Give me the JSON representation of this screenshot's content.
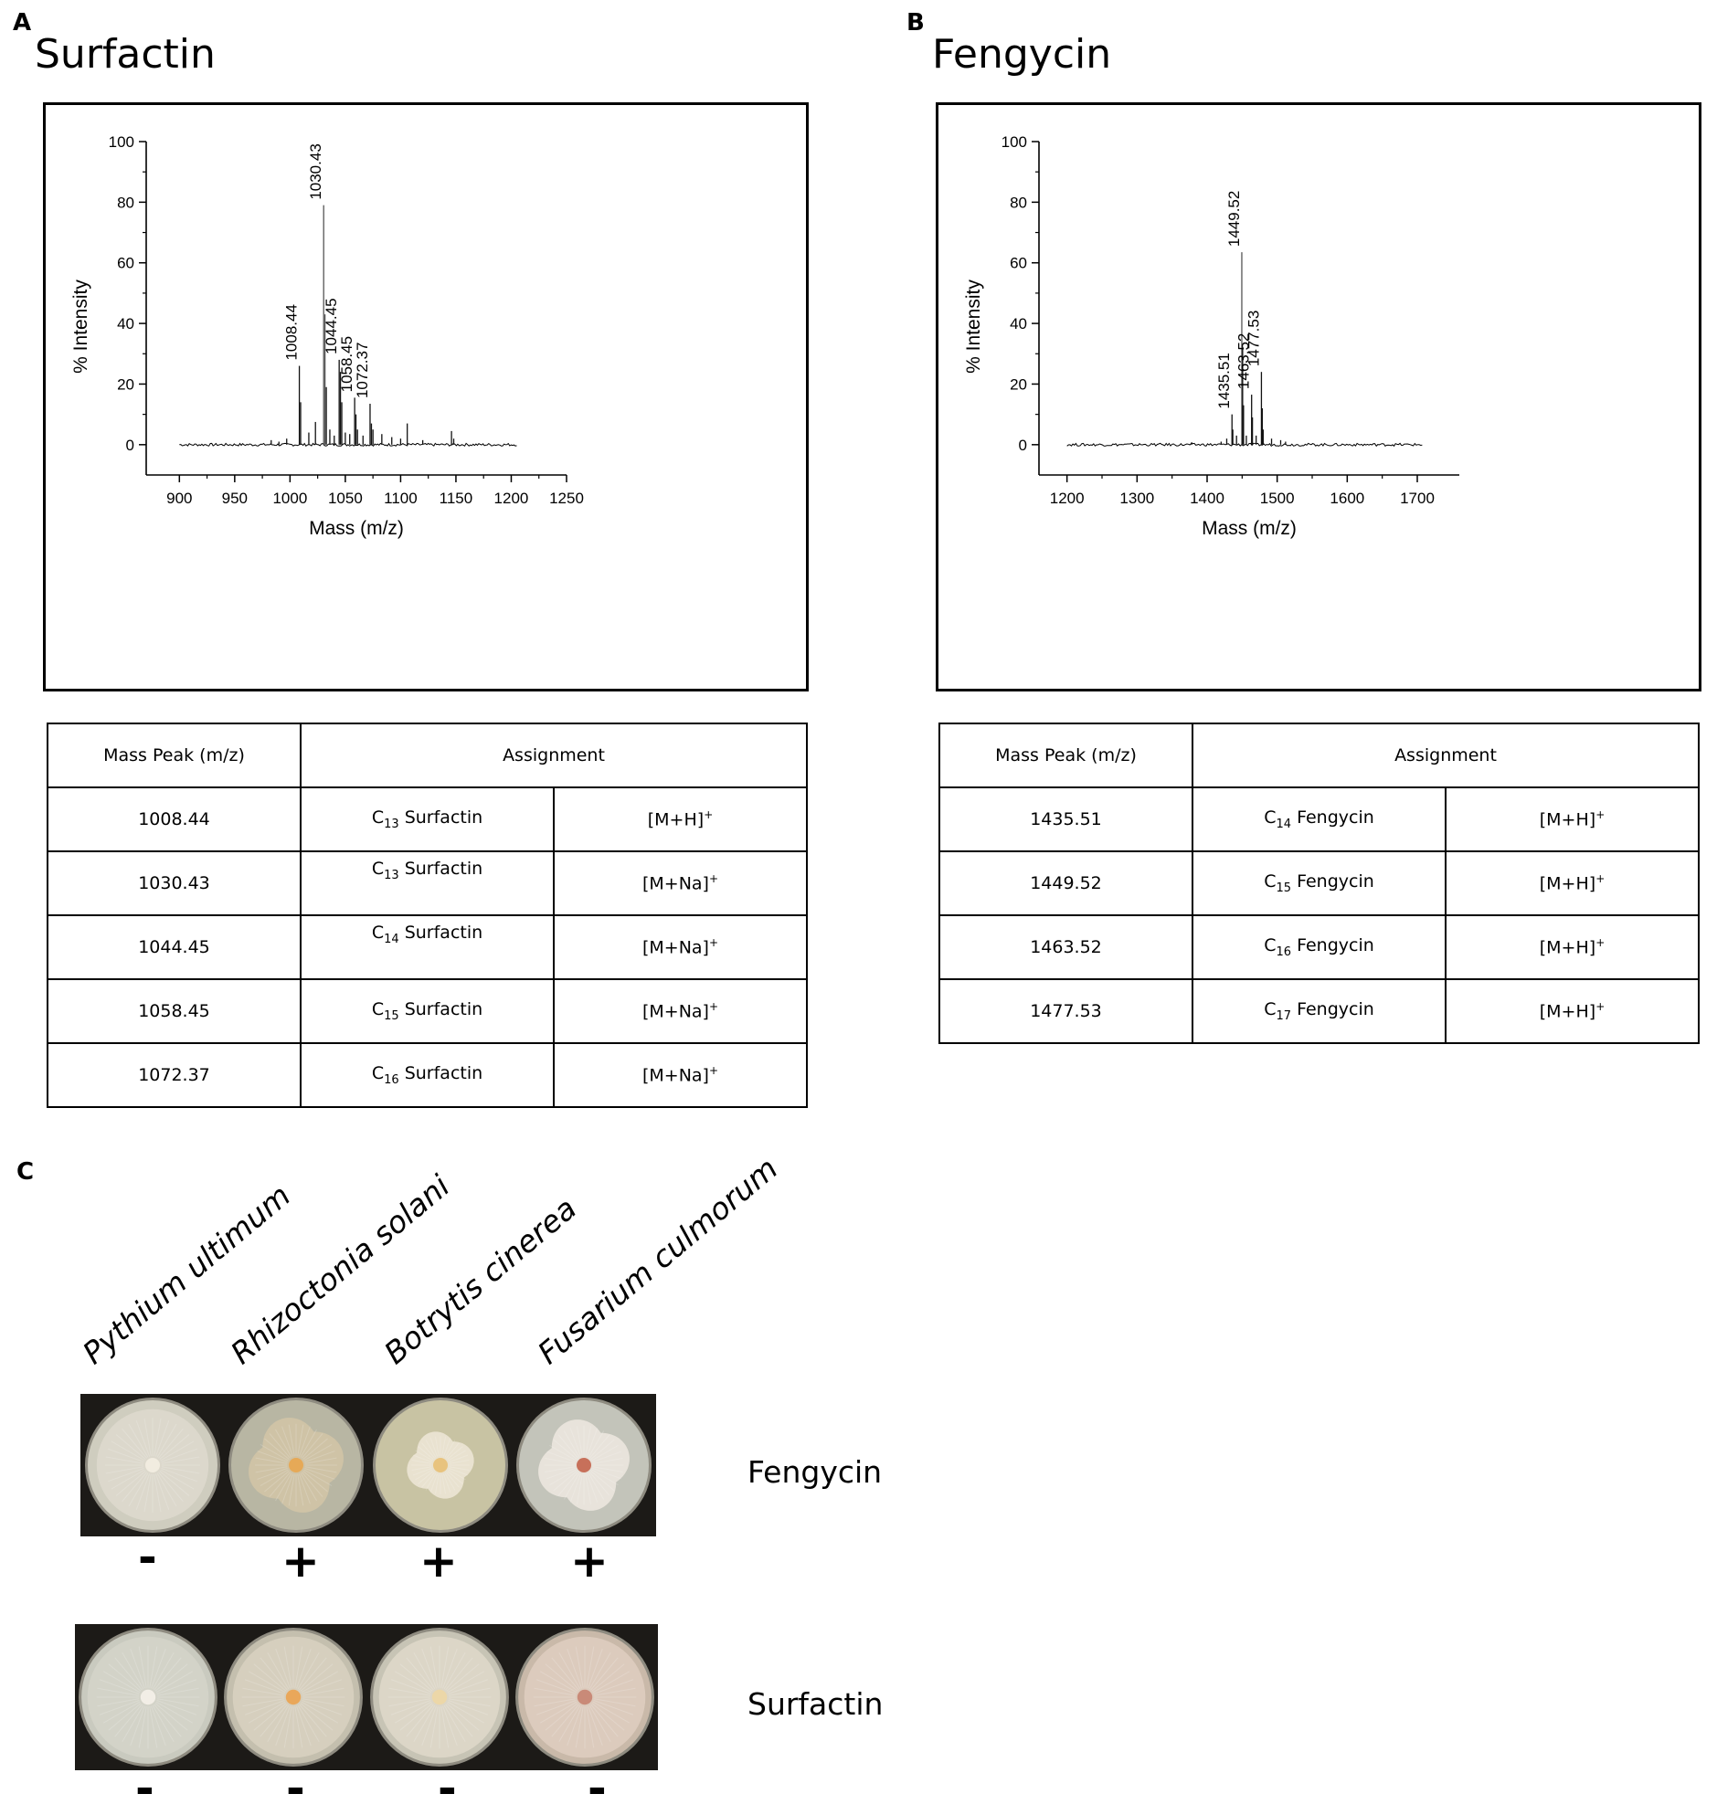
{
  "panel_a": {
    "letter": "A",
    "title": "Surfactin",
    "table": {
      "header_mass": "Mass Peak (m/z)",
      "header_assignment": "Assignment",
      "rows": [
        {
          "mass": "1008.44",
          "carbon": "13",
          "compound": "Surfactin",
          "ion_base": "[M+H]",
          "ion_sup": "+"
        },
        {
          "mass": "1030.43",
          "carbon": "13",
          "compound": "Surfactin",
          "ion_base": "[M+Na]",
          "ion_sup": "+"
        },
        {
          "mass": "1044.45",
          "carbon": "14",
          "compound": "Surfactin",
          "ion_base": "[M+Na]",
          "ion_sup": "+"
        },
        {
          "mass": "1058.45",
          "carbon": "15",
          "compound": "Surfactin",
          "ion_base": "[M+Na]",
          "ion_sup": "+"
        },
        {
          "mass": "1072.37",
          "carbon": "16",
          "compound": "Surfactin",
          "ion_base": "[M+Na]",
          "ion_sup": "+"
        }
      ]
    }
  },
  "panel_b": {
    "letter": "B",
    "title": "Fengycin",
    "table": {
      "header_mass": "Mass Peak (m/z)",
      "header_assignment": "Assignment",
      "rows": [
        {
          "mass": "1435.51",
          "carbon": "14",
          "compound": "Fengycin",
          "ion_base": "[M+H]",
          "ion_sup": "+"
        },
        {
          "mass": "1449.52",
          "carbon": "15",
          "compound": "Fengycin",
          "ion_base": "[M+H]",
          "ion_sup": "+"
        },
        {
          "mass": "1463.52",
          "carbon": "16",
          "compound": "Fengycin",
          "ion_base": "[M+H]",
          "ion_sup": "+"
        },
        {
          "mass": "1477.53",
          "carbon": "17",
          "compound": "Fengycin",
          "ion_base": "[M+H]",
          "ion_sup": "+"
        }
      ]
    }
  },
  "panel_c": {
    "letter": "C",
    "species": [
      "Pythium ultimum",
      "Rhizoctonia solani",
      "Botrytis cinerea",
      "Fusarium culmorum"
    ],
    "rows": [
      {
        "label": "Fengycin",
        "signs": [
          "-",
          "+",
          "+",
          "+"
        ],
        "plates": [
          {
            "agar": "#cfcdbf",
            "mycelium": "#dcd8cc",
            "center": "#f1ece0",
            "spread": 0.9,
            "shape": "round"
          },
          {
            "agar": "#b8b6a3",
            "mycelium": "#cfc3a6",
            "center": "#e6a957",
            "spread": 0.78,
            "shape": "star"
          },
          {
            "agar": "#c8c3a3",
            "mycelium": "#e9e2d0",
            "center": "#e8c37e",
            "spread": 0.55,
            "shape": "star"
          },
          {
            "agar": "#c3c4ba",
            "mycelium": "#e8e3db",
            "center": "#c7705a",
            "spread": 0.75,
            "shape": "star"
          }
        ]
      },
      {
        "label": "Surfactin",
        "signs": [
          "-",
          "-",
          "-",
          "-"
        ],
        "plates": [
          {
            "agar": "#c9cabf",
            "mycelium": "#d3d3c8",
            "center": "#f2eee6",
            "spread": 0.95,
            "shape": "round"
          },
          {
            "agar": "#c4bfae",
            "mycelium": "#d6cfbe",
            "center": "#e9a75a",
            "spread": 0.95,
            "shape": "round"
          },
          {
            "agar": "#c7c4b5",
            "mycelium": "#dcd6c7",
            "center": "#ecd7a8",
            "spread": 0.95,
            "shape": "round"
          },
          {
            "agar": "#c9b9a9",
            "mycelium": "#dccbbd",
            "center": "#c98a78",
            "spread": 0.95,
            "shape": "round"
          }
        ]
      }
    ]
  },
  "chart_data": [
    {
      "type": "line",
      "panel": "A",
      "xlabel": "Mass (m/z)",
      "ylabel": "% Intensity",
      "xlim": [
        870,
        1250
      ],
      "ylim": [
        -10,
        100
      ],
      "xticks": [
        "900",
        "950",
        "1000",
        "1050",
        "1100",
        "1150",
        "1200",
        "1250"
      ],
      "yticks": [
        "0",
        "20",
        "40",
        "60",
        "80",
        "100"
      ],
      "baseline_range": [
        900,
        1205
      ],
      "peaks": [
        {
          "x": 983,
          "y": 1.5
        },
        {
          "x": 990,
          "y": 1
        },
        {
          "x": 997,
          "y": 2
        },
        {
          "x": 1008.44,
          "y": 26,
          "label": "1008.44"
        },
        {
          "x": 1009.6,
          "y": 14
        },
        {
          "x": 1017,
          "y": 4
        },
        {
          "x": 1023,
          "y": 7.5
        },
        {
          "x": 1030.43,
          "y": 79,
          "label": "1030.43"
        },
        {
          "x": 1031.6,
          "y": 43
        },
        {
          "x": 1032.8,
          "y": 19
        },
        {
          "x": 1036,
          "y": 5
        },
        {
          "x": 1040,
          "y": 3
        },
        {
          "x": 1044.45,
          "y": 28,
          "label": "1044.45"
        },
        {
          "x": 1045.6,
          "y": 24
        },
        {
          "x": 1046.8,
          "y": 14
        },
        {
          "x": 1050,
          "y": 4
        },
        {
          "x": 1054,
          "y": 3.5
        },
        {
          "x": 1058.45,
          "y": 15.5,
          "label": "1058.45"
        },
        {
          "x": 1059.6,
          "y": 10
        },
        {
          "x": 1061,
          "y": 5
        },
        {
          "x": 1066,
          "y": 3
        },
        {
          "x": 1072.37,
          "y": 13.5,
          "label": "1072.37"
        },
        {
          "x": 1073.6,
          "y": 7
        },
        {
          "x": 1075,
          "y": 5
        },
        {
          "x": 1083,
          "y": 3.5
        },
        {
          "x": 1092,
          "y": 2.5
        },
        {
          "x": 1100,
          "y": 2
        },
        {
          "x": 1106,
          "y": 7
        },
        {
          "x": 1120,
          "y": 1.5
        },
        {
          "x": 1146,
          "y": 4.5
        },
        {
          "x": 1148,
          "y": 2
        }
      ]
    },
    {
      "type": "line",
      "panel": "B",
      "xlabel": "Mass (m/z)",
      "ylabel": "% Intensity",
      "xlim": [
        1160,
        1760
      ],
      "ylim": [
        -10,
        100
      ],
      "xticks": [
        "1200",
        "1300",
        "1400",
        "1500",
        "1600",
        "1700"
      ],
      "yticks": [
        "0",
        "20",
        "40",
        "60",
        "80",
        "100"
      ],
      "baseline_range": [
        1200,
        1707
      ],
      "peaks": [
        {
          "x": 1378,
          "y": 0.8
        },
        {
          "x": 1420,
          "y": 1
        },
        {
          "x": 1428,
          "y": 2
        },
        {
          "x": 1435.51,
          "y": 10,
          "label": "1435.51"
        },
        {
          "x": 1436.7,
          "y": 5
        },
        {
          "x": 1442,
          "y": 3
        },
        {
          "x": 1449.52,
          "y": 63.5,
          "label": "1449.52"
        },
        {
          "x": 1450.7,
          "y": 32
        },
        {
          "x": 1452,
          "y": 13
        },
        {
          "x": 1456,
          "y": 3
        },
        {
          "x": 1463.52,
          "y": 16.5,
          "label": "1463.52"
        },
        {
          "x": 1464.7,
          "y": 9
        },
        {
          "x": 1470,
          "y": 3
        },
        {
          "x": 1477.53,
          "y": 24,
          "label": "1477.53"
        },
        {
          "x": 1478.7,
          "y": 12
        },
        {
          "x": 1480,
          "y": 5
        },
        {
          "x": 1492,
          "y": 2
        },
        {
          "x": 1505,
          "y": 1.5
        },
        {
          "x": 1512,
          "y": 1
        }
      ]
    }
  ]
}
